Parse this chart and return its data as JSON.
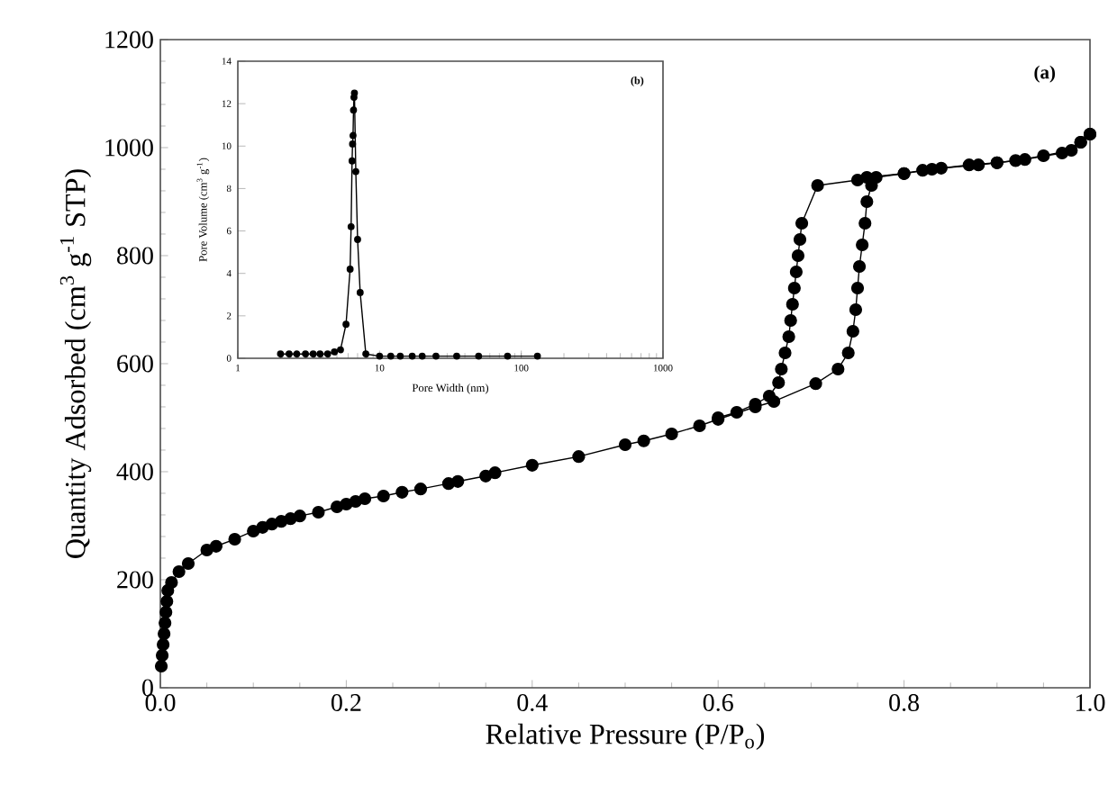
{
  "chart_data": [
    {
      "type": "line",
      "xlabel": "Relative Pressure (P/P$_{o}$)",
      "ylabel": "Quantity Adsorbed (cm$^{3}$ g$^{-1}$ STP)",
      "annotations": [
        "(a)"
      ],
      "marker": "circle",
      "line_style": "solid",
      "grid": false,
      "xlim": [
        0,
        1
      ],
      "ylim": [
        0,
        1200
      ],
      "xticks": [
        {
          "value": 0,
          "label": "0.0"
        },
        {
          "value": 0.2,
          "label": "0.2"
        },
        {
          "value": 0.4,
          "label": "0.4"
        },
        {
          "value": 0.6,
          "label": "0.6"
        },
        {
          "value": 0.8,
          "label": "0.8"
        },
        {
          "value": 1,
          "label": "1.0"
        }
      ],
      "yticks": [
        0,
        200,
        400,
        600,
        800,
        1000,
        1200
      ],
      "series": [
        {
          "color": "#000000",
          "x": [
            0.001,
            0.002,
            0.003,
            0.004,
            0.005,
            0.006,
            0.007,
            0.008,
            0.012,
            0.02,
            0.03,
            0.05,
            0.06,
            0.08,
            0.1,
            0.11,
            0.12,
            0.13,
            0.14,
            0.15,
            0.17,
            0.19,
            0.2,
            0.21,
            0.22,
            0.24,
            0.26,
            0.28,
            0.31,
            0.32,
            0.35,
            0.36,
            0.4,
            0.45,
            0.5,
            0.52,
            0.55,
            0.58,
            0.6,
            0.64,
            0.66,
            0.705,
            0.729,
            0.74,
            0.745,
            0.748,
            0.75,
            0.752,
            0.755,
            0.758,
            0.76,
            0.765,
            0.77,
            0.8,
            0.82,
            0.84,
            0.88,
            0.9,
            0.92,
            0.95,
            0.98,
            0.99,
            1.0
          ],
          "values": [
            40,
            60,
            80,
            100,
            120,
            140,
            160,
            180,
            195,
            215,
            230,
            255,
            262,
            275,
            290,
            297,
            303,
            308,
            313,
            318,
            325,
            335,
            340,
            345,
            350,
            355,
            362,
            368,
            378,
            382,
            392,
            398,
            412,
            428,
            450,
            457,
            470,
            485,
            497,
            520,
            530,
            563,
            590,
            620,
            660,
            700,
            740,
            780,
            820,
            860,
            900,
            930,
            945,
            952,
            958,
            962,
            968,
            972,
            976,
            985,
            995,
            1010,
            1025
          ]
        },
        {
          "color": "#000000",
          "x": [
            1.0,
            0.99,
            0.97,
            0.93,
            0.9,
            0.87,
            0.83,
            0.8,
            0.76,
            0.75,
            0.707,
            0.69,
            0.688,
            0.686,
            0.684,
            0.682,
            0.68,
            0.678,
            0.676,
            0.672,
            0.668,
            0.665,
            0.655,
            0.64,
            0.62,
            0.6
          ],
          "values": [
            1025,
            1010,
            990,
            978,
            972,
            968,
            960,
            952,
            945,
            940,
            930,
            860,
            830,
            800,
            770,
            740,
            710,
            680,
            650,
            620,
            590,
            565,
            540,
            525,
            510,
            500
          ]
        }
      ]
    },
    {
      "type": "line",
      "xlabel": "Pore Width (nm)",
      "ylabel": "Pore Volume (cm$^{3}$ g$^{-1}$)",
      "annotations": [
        "(b)"
      ],
      "marker": "circle",
      "line_style": "solid",
      "grid": false,
      "log": "x",
      "xlim": [
        1,
        1000
      ],
      "ylim": [
        0,
        14
      ],
      "xticks": [
        1,
        10,
        100,
        1000
      ],
      "yticks": [
        0,
        2,
        4,
        6,
        8,
        10,
        12,
        14
      ],
      "series": [
        {
          "color": "#000000",
          "x": [
            2,
            2.3,
            2.6,
            3,
            3.4,
            3.8,
            4.3,
            4.8,
            5.3,
            5.8,
            6.2,
            6.3,
            6.4,
            6.45,
            6.5,
            6.55,
            6.6,
            6.65,
            6.8,
            7.0,
            7.3,
            8.0,
            10,
            12,
            14,
            17,
            20,
            25,
            35,
            50,
            80,
            130
          ],
          "values": [
            0.2,
            0.2,
            0.2,
            0.2,
            0.2,
            0.2,
            0.2,
            0.3,
            0.4,
            1.6,
            4.2,
            6.2,
            9.3,
            10.1,
            10.5,
            11.7,
            12.3,
            12.5,
            8.8,
            5.6,
            3.1,
            0.2,
            0.1,
            0.1,
            0.1,
            0.1,
            0.1,
            0.1,
            0.1,
            0.1,
            0.1,
            0.1
          ]
        }
      ]
    }
  ]
}
